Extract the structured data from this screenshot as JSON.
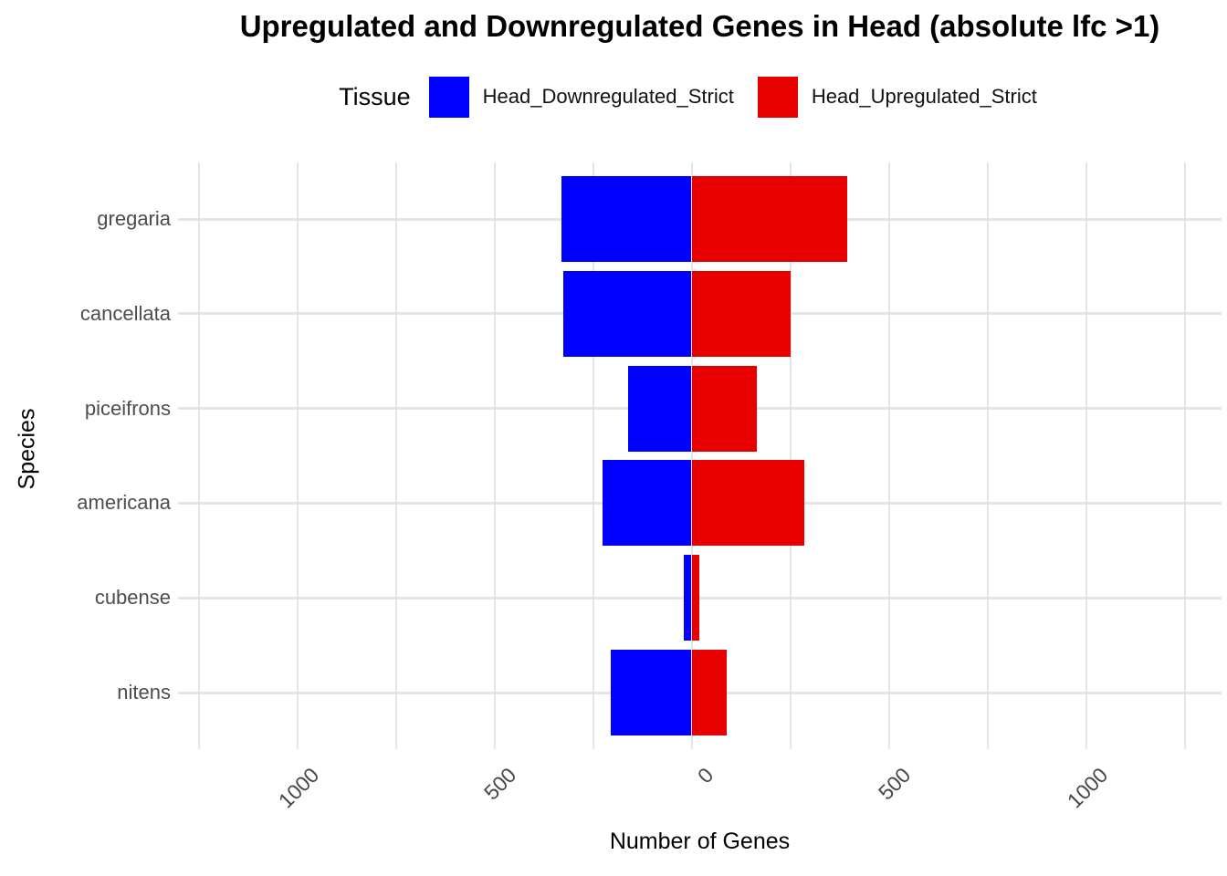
{
  "title": "Upregulated and Downregulated Genes in Head (absolute lfc >1)",
  "legend": {
    "title": "Tissue",
    "position": "top",
    "items": [
      {
        "label": "Head_Downregulated_Strict",
        "color": "#0000ff"
      },
      {
        "label": "Head_Upregulated_Strict",
        "color": "#e60000"
      }
    ]
  },
  "axes": {
    "x_title": "Number of Genes",
    "y_title": "Species"
  },
  "chart_data": {
    "type": "bar",
    "orientation": "horizontal_diverging",
    "title": "Upregulated and Downregulated Genes in Head (absolute lfc >1)",
    "xlabel": "Number of Genes",
    "ylabel": "Species",
    "categories": [
      "gregaria",
      "cancellata",
      "piceifrons",
      "americana",
      "cubense",
      "nitens"
    ],
    "series": [
      {
        "name": "Head_Downregulated_Strict",
        "color": "#0000ff",
        "side": "negative",
        "values": [
          330,
          325,
          160,
          225,
          20,
          205
        ]
      },
      {
        "name": "Head_Upregulated_Strict",
        "color": "#e60000",
        "side": "positive",
        "values": [
          395,
          250,
          165,
          285,
          20,
          90
        ]
      }
    ],
    "x_ticks": [
      {
        "value": -1000,
        "label": "1000"
      },
      {
        "value": -500,
        "label": "500"
      },
      {
        "value": 0,
        "label": "0"
      },
      {
        "value": 500,
        "label": "500"
      },
      {
        "value": 1000,
        "label": "1000"
      }
    ],
    "x_gridlines": [
      -1250,
      -1000,
      -750,
      -500,
      -250,
      0,
      250,
      500,
      750,
      1000,
      1250
    ],
    "xlim": [
      -1300,
      1345
    ],
    "tick_label_rotation_deg": 45,
    "grid": "on",
    "grid_color": "#e5e5e5",
    "axis_text_color": "#4d4d4d",
    "legend_position": "top"
  }
}
